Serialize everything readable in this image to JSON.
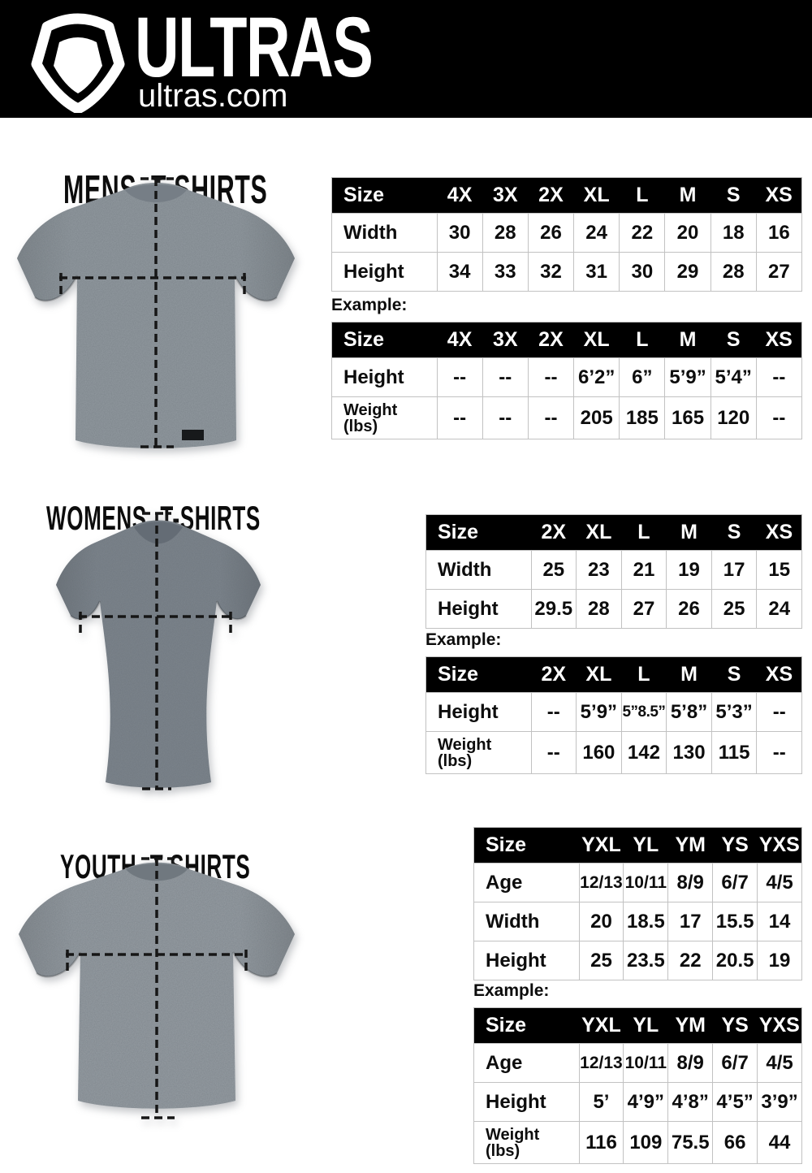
{
  "page": {
    "brand": "ULTRAS",
    "domain": "ultras.com"
  },
  "colors": {
    "header_bg": "#000000",
    "header_text": "#ffffff",
    "table_header_bg": "#000000",
    "table_header_text": "#ffffff",
    "table_border": "#c2c2c2",
    "body_text": "#0d0d0d",
    "mens_shirt_gray": "#939ba1",
    "womens_shirt_gray": "#7d858d",
    "youth_shirt_gray": "#979ea4"
  },
  "sections": [
    {
      "id": "mens",
      "title": "MENS T-SHIRTS",
      "example_label": "Example:",
      "size_table": {
        "columns": [
          "Size",
          "4X",
          "3X",
          "2X",
          "XL",
          "L",
          "M",
          "S",
          "XS"
        ],
        "rows": [
          {
            "label": "Width",
            "values": [
              "30",
              "28",
              "26",
              "24",
              "22",
              "20",
              "18",
              "16"
            ]
          },
          {
            "label": "Height",
            "values": [
              "34",
              "33",
              "32",
              "31",
              "30",
              "29",
              "28",
              "27"
            ]
          }
        ]
      },
      "example_table": {
        "columns": [
          "Size",
          "4X",
          "3X",
          "2X",
          "XL",
          "L",
          "M",
          "S",
          "XS"
        ],
        "rows": [
          {
            "label": "Height",
            "values": [
              "--",
              "--",
              "--",
              "6’2”",
              "6”",
              "5’9”",
              "5’4”",
              "--"
            ]
          },
          {
            "label": "Weight",
            "sublabel": "(lbs)",
            "values": [
              "--",
              "--",
              "--",
              "205",
              "185",
              "165",
              "120",
              "--"
            ]
          }
        ]
      }
    },
    {
      "id": "womens",
      "title": "WOMENS T-SHIRTS",
      "example_label": "Example:",
      "size_table": {
        "columns": [
          "Size",
          "2X",
          "XL",
          "L",
          "M",
          "S",
          "XS"
        ],
        "rows": [
          {
            "label": "Width",
            "values": [
              "25",
              "23",
              "21",
              "19",
              "17",
              "15"
            ]
          },
          {
            "label": "Height",
            "values": [
              "29.5",
              "28",
              "27",
              "26",
              "25",
              "24"
            ]
          }
        ]
      },
      "example_table": {
        "columns": [
          "Size",
          "2X",
          "XL",
          "L",
          "M",
          "S",
          "XS"
        ],
        "rows": [
          {
            "label": "Height",
            "values": [
              "--",
              "5’9”",
              "5”8.5”",
              "5’8”",
              "5’3”",
              "--"
            ]
          },
          {
            "label": "Weight",
            "sublabel": "(lbs)",
            "values": [
              "--",
              "160",
              "142",
              "130",
              "115",
              "--"
            ]
          }
        ]
      }
    },
    {
      "id": "youth",
      "title": "YOUTH T-SHIRTS",
      "example_label": "Example:",
      "size_table": {
        "columns": [
          "Size",
          "YXL",
          "YL",
          "YM",
          "YS",
          "YXS"
        ],
        "rows": [
          {
            "label": "Age",
            "values": [
              "12/13",
              "10/11",
              "8/9",
              "6/7",
              "4/5"
            ]
          },
          {
            "label": "Width",
            "values": [
              "20",
              "18.5",
              "17",
              "15.5",
              "14"
            ]
          },
          {
            "label": "Height",
            "values": [
              "25",
              "23.5",
              "22",
              "20.5",
              "19"
            ]
          }
        ]
      },
      "example_table": {
        "columns": [
          "Size",
          "YXL",
          "YL",
          "YM",
          "YS",
          "YXS"
        ],
        "rows": [
          {
            "label": "Age",
            "values": [
              "12/13",
              "10/11",
              "8/9",
              "6/7",
              "4/5"
            ]
          },
          {
            "label": "Height",
            "values": [
              "5’",
              "4’9”",
              "4’8”",
              "4’5”",
              "3’9”"
            ]
          },
          {
            "label": "Weight",
            "sublabel": "(lbs)",
            "values": [
              "116",
              "109",
              "75.5",
              "66",
              "44"
            ]
          }
        ]
      }
    }
  ]
}
